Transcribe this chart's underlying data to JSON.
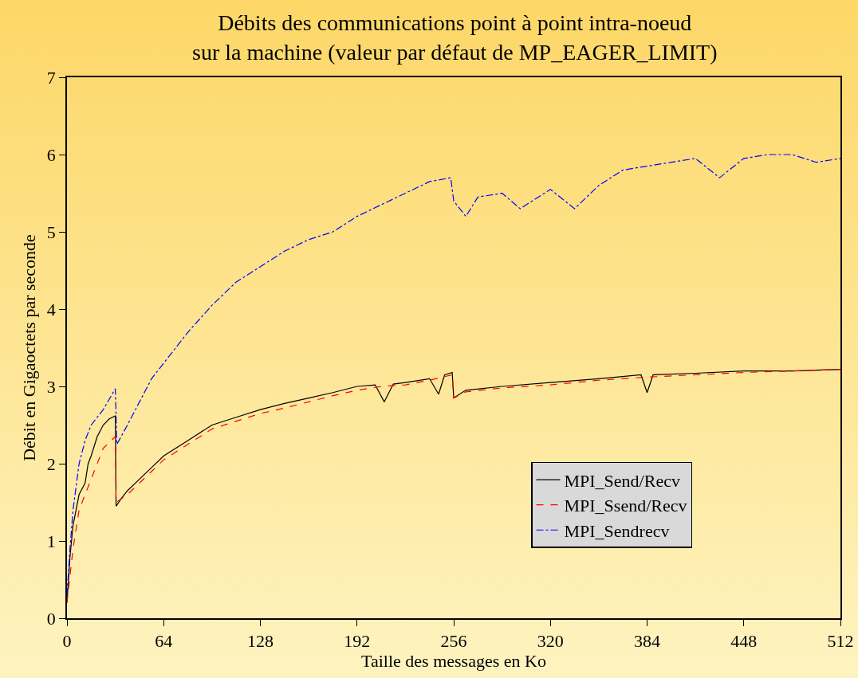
{
  "chart_data": {
    "type": "line",
    "title": "Débits des communications point à point intra-noeud\nsur la machine (valeur par défaut de MP_EAGER_LIMIT)",
    "xlabel": "Taille des messages en Ko",
    "ylabel": "Débit en Gigaoctets par seconde",
    "xlim": [
      0,
      512
    ],
    "xticks": [
      0,
      64,
      128,
      192,
      256,
      320,
      384,
      448,
      512
    ],
    "ylim": [
      0,
      7
    ],
    "yticks": [
      0,
      1,
      2,
      3,
      4,
      5,
      6,
      7
    ],
    "grid": false,
    "legend": "bottom right",
    "marker": "none",
    "series": [
      {
        "name": "MPI_Send/Recv",
        "color": "#000000",
        "line_style": "solid",
        "x": [
          0,
          2,
          4,
          8,
          12,
          14,
          16,
          20,
          24,
          28,
          32,
          32.5,
          36,
          40,
          48,
          56,
          64,
          80,
          96,
          112,
          128,
          144,
          160,
          176,
          192,
          204,
          210,
          216,
          224,
          240,
          246,
          250,
          255,
          256,
          264,
          288,
          320,
          352,
          380,
          384,
          388,
          416,
          448,
          480,
          512
        ],
        "values": [
          0.2,
          0.8,
          1.2,
          1.6,
          1.75,
          2.0,
          2.1,
          2.35,
          2.5,
          2.58,
          2.62,
          1.45,
          1.55,
          1.65,
          1.8,
          1.95,
          2.1,
          2.3,
          2.5,
          2.6,
          2.7,
          2.78,
          2.85,
          2.92,
          3.0,
          3.02,
          2.8,
          3.03,
          3.05,
          3.1,
          2.9,
          3.15,
          3.18,
          2.85,
          2.95,
          3.0,
          3.05,
          3.1,
          3.15,
          2.92,
          3.15,
          3.17,
          3.2,
          3.2,
          3.22
        ]
      },
      {
        "name": "MPI_Ssend/Recv",
        "color": "#ff0000",
        "line_style": "dashed",
        "x": [
          0,
          4,
          8,
          16,
          24,
          32,
          32.5,
          40,
          48,
          56,
          64,
          80,
          96,
          112,
          128,
          144,
          160,
          176,
          192,
          208,
          224,
          240,
          255,
          256,
          264,
          288,
          320,
          352,
          384,
          416,
          448,
          480,
          512
        ],
        "values": [
          0.2,
          0.9,
          1.4,
          1.8,
          2.2,
          2.35,
          1.5,
          1.6,
          1.75,
          1.9,
          2.05,
          2.25,
          2.45,
          2.55,
          2.65,
          2.72,
          2.8,
          2.88,
          2.95,
          3.0,
          3.02,
          3.08,
          3.15,
          2.85,
          2.93,
          2.98,
          3.02,
          3.08,
          3.12,
          3.15,
          3.18,
          3.2,
          3.22
        ]
      },
      {
        "name": "MPI_Sendrecv",
        "color": "#0000ff",
        "line_style": "dashdot",
        "x": [
          0,
          2,
          4,
          8,
          12,
          16,
          24,
          32,
          33,
          40,
          48,
          56,
          64,
          80,
          96,
          112,
          128,
          144,
          160,
          176,
          192,
          208,
          224,
          240,
          254,
          256,
          264,
          272,
          288,
          300,
          320,
          336,
          352,
          368,
          384,
          400,
          416,
          432,
          448,
          464,
          480,
          496,
          512
        ],
        "values": [
          0.3,
          0.9,
          1.4,
          2.0,
          2.3,
          2.5,
          2.7,
          2.97,
          2.25,
          2.5,
          2.8,
          3.1,
          3.3,
          3.7,
          4.05,
          4.35,
          4.55,
          4.75,
          4.9,
          5.0,
          5.2,
          5.35,
          5.5,
          5.65,
          5.7,
          5.4,
          5.2,
          5.45,
          5.5,
          5.3,
          5.55,
          5.3,
          5.6,
          5.8,
          5.85,
          5.9,
          5.95,
          5.7,
          5.95,
          6.0,
          6.0,
          5.9,
          5.95
        ]
      }
    ]
  }
}
